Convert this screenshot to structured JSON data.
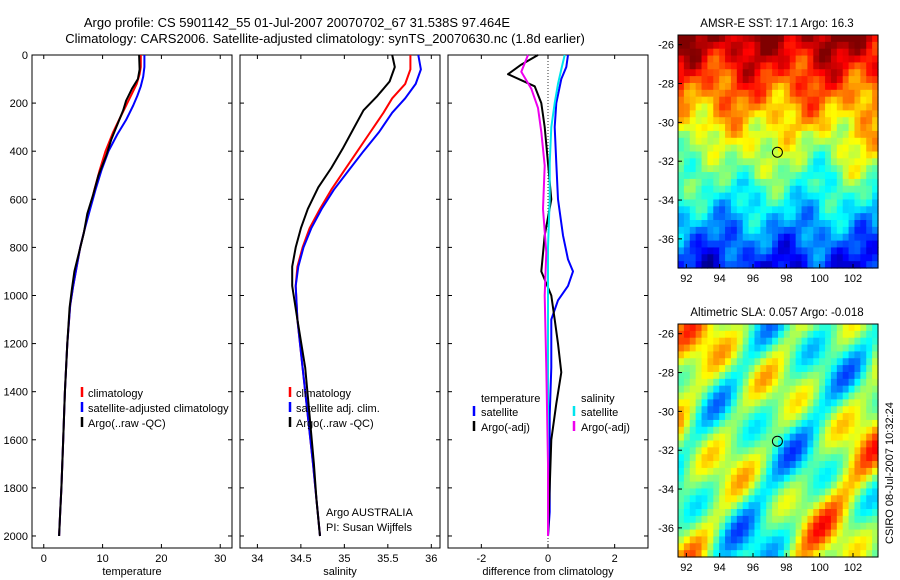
{
  "header": {
    "line1": "Argo profile: CS 5901142_55 01-Jul-2007 20070702_67 31.538S 97.464E",
    "line2": "Climatology: CARS2006. Satellite-adjusted climatology: synTS_20070630.nc (1.8d earlier)"
  },
  "credit": {
    "text": "CSIRO 08-Jul-2007 10:32:24"
  },
  "colors": {
    "climatology": "#ff0000",
    "satellite": "#0000ff",
    "argo": "#000000",
    "salinity_satellite": "#00e5ee",
    "salinity_argo": "#ee00ee"
  },
  "chart_data": [
    {
      "id": "temperature",
      "type": "line",
      "xlabel": "temperature",
      "ylabel": "",
      "xlim": [
        -2,
        32
      ],
      "ylim": [
        2050,
        0
      ],
      "xticks": [
        0,
        10,
        20,
        30
      ],
      "yticks": [
        0,
        200,
        400,
        600,
        800,
        1000,
        1200,
        1400,
        1600,
        1800,
        2000
      ],
      "legend": {
        "placement": "lower-right",
        "entries": [
          "climatology",
          "satellite-adjusted climatology",
          "Argo(..raw -QC)"
        ]
      },
      "series": [
        {
          "name": "climatology",
          "color": "#ff0000",
          "x": [
            16.5,
            16.5,
            16.3,
            15.8,
            15.0,
            14.2,
            13.0,
            11.8,
            10.5,
            9.5,
            8.6,
            7.8,
            7.0,
            6.2,
            5.6,
            5.0,
            4.5,
            4.0,
            3.6,
            3.3,
            3.0,
            2.8,
            2.6
          ],
          "y": [
            0,
            50,
            80,
            120,
            160,
            200,
            260,
            320,
            400,
            480,
            560,
            640,
            720,
            800,
            880,
            960,
            1040,
            1200,
            1400,
            1600,
            1800,
            1900,
            2000
          ]
        },
        {
          "name": "satellite-adjusted climatology",
          "color": "#0000ff",
          "x": [
            17.1,
            17.1,
            16.9,
            16.5,
            15.9,
            15.2,
            14.0,
            12.5,
            11.0,
            9.8,
            8.8,
            7.9,
            7.0,
            6.2,
            5.6,
            5.0,
            4.5,
            4.0,
            3.6,
            3.3,
            3.0,
            2.8,
            2.6
          ],
          "y": [
            0,
            50,
            90,
            130,
            170,
            210,
            270,
            330,
            400,
            480,
            560,
            640,
            720,
            800,
            880,
            960,
            1040,
            1200,
            1400,
            1600,
            1800,
            1900,
            2000
          ]
        },
        {
          "name": "Argo(..raw -QC)",
          "color": "#000000",
          "x": [
            16.2,
            16.3,
            16.0,
            15.0,
            14.0,
            13.5,
            12.5,
            11.5,
            10.6,
            9.3,
            8.4,
            7.4,
            6.8,
            6.0,
            5.2,
            4.8,
            4.4,
            4.0,
            3.6,
            3.3,
            3.0,
            2.8,
            2.6
          ],
          "y": [
            0,
            60,
            100,
            140,
            190,
            230,
            290,
            350,
            420,
            500,
            580,
            660,
            740,
            820,
            900,
            970,
            1050,
            1200,
            1400,
            1600,
            1800,
            1900,
            2000
          ]
        }
      ]
    },
    {
      "id": "salinity",
      "type": "line",
      "xlabel": "salinity",
      "ylabel": "",
      "xlim": [
        33.8,
        36.1
      ],
      "ylim": [
        2050,
        0
      ],
      "xticks": [
        34,
        34.5,
        35,
        35.5,
        36
      ],
      "yticks": [
        0,
        200,
        400,
        600,
        800,
        1000,
        1200,
        1400,
        1600,
        1800,
        2000
      ],
      "legend": {
        "placement": "lower-right",
        "entries": [
          "climatology",
          "satellite adj. clim.",
          "Argo(..raw -QC)"
        ]
      },
      "annotation": [
        "Argo AUSTRALIA",
        "PI: Susan Wijffels"
      ],
      "series": [
        {
          "name": "climatology",
          "color": "#ff0000",
          "x": [
            35.76,
            35.76,
            35.7,
            35.55,
            35.45,
            35.3,
            35.15,
            35.0,
            34.85,
            34.72,
            34.6,
            34.52,
            34.46,
            34.44,
            34.46,
            34.52,
            34.58,
            34.64,
            34.68,
            34.72
          ],
          "y": [
            0,
            60,
            120,
            180,
            240,
            320,
            400,
            480,
            560,
            640,
            720,
            800,
            880,
            960,
            1100,
            1300,
            1500,
            1700,
            1850,
            2000
          ]
        },
        {
          "name": "satellite adj. clim.",
          "color": "#0000ff",
          "x": [
            35.85,
            35.88,
            35.82,
            35.7,
            35.55,
            35.4,
            35.22,
            35.05,
            34.88,
            34.74,
            34.62,
            34.53,
            34.47,
            34.44,
            34.46,
            34.52,
            34.58,
            34.64,
            34.68,
            34.72
          ],
          "y": [
            0,
            60,
            120,
            180,
            240,
            320,
            400,
            480,
            560,
            640,
            720,
            800,
            880,
            960,
            1100,
            1300,
            1500,
            1700,
            1850,
            2000
          ]
        },
        {
          "name": "Argo(..raw -QC)",
          "color": "#000000",
          "x": [
            35.55,
            35.58,
            35.52,
            35.38,
            35.22,
            35.1,
            34.98,
            34.85,
            34.7,
            34.58,
            34.5,
            34.44,
            34.4,
            34.4,
            34.46,
            34.55,
            34.6,
            34.65,
            34.68,
            34.72
          ],
          "y": [
            0,
            50,
            110,
            170,
            230,
            310,
            390,
            470,
            550,
            640,
            720,
            800,
            880,
            960,
            1100,
            1300,
            1500,
            1700,
            1850,
            2000
          ]
        }
      ]
    },
    {
      "id": "difference",
      "type": "line",
      "xlabel": "difference from climatology",
      "ylabel": "",
      "xlim": [
        -3,
        3
      ],
      "ylim": [
        2050,
        0
      ],
      "xticks": [
        -2,
        0,
        2
      ],
      "yticks": [
        0,
        200,
        400,
        600,
        800,
        1000,
        1200,
        1400,
        1600,
        1800,
        2000
      ],
      "legend": {
        "placement": "lower-center",
        "group_titles": [
          "temperature",
          "salinity"
        ],
        "entries": [
          "satellite",
          "Argo(-adj)",
          "satellite",
          "Argo(-adj)"
        ]
      },
      "series": [
        {
          "name": "satellite",
          "group": "temperature",
          "color": "#0000ff",
          "x": [
            0.6,
            0.55,
            0.4,
            0.25,
            0.2,
            0.25,
            0.3,
            0.45,
            0.6,
            0.75,
            0.6,
            0.3,
            0.1,
            0.1,
            0.05,
            0.05,
            0.05,
            0.0
          ],
          "y": [
            0,
            50,
            100,
            200,
            300,
            450,
            600,
            750,
            850,
            900,
            960,
            1020,
            1100,
            1300,
            1500,
            1700,
            1900,
            2000
          ]
        },
        {
          "name": "Argo(-adj)",
          "group": "temperature",
          "color": "#000000",
          "x": [
            -0.3,
            -0.8,
            -1.2,
            -0.4,
            -0.2,
            -0.1,
            0.0,
            0.1,
            -0.1,
            -0.2,
            0.1,
            0.2,
            0.3,
            0.4,
            0.25,
            0.1,
            0.05,
            0.0
          ],
          "y": [
            0,
            40,
            80,
            130,
            200,
            300,
            450,
            600,
            750,
            900,
            1000,
            1100,
            1200,
            1320,
            1450,
            1600,
            1800,
            2000
          ]
        },
        {
          "name": "satellite",
          "group": "salinity",
          "color": "#00e5ee",
          "x": [
            0.5,
            0.4,
            0.3,
            0.2,
            0.1,
            0.05,
            0.05,
            0.0,
            0.0,
            0.0,
            0.0,
            0.0
          ],
          "y": [
            0,
            60,
            120,
            200,
            300,
            450,
            600,
            800,
            1000,
            1400,
            1800,
            2000
          ]
        },
        {
          "name": "Argo(-adj)",
          "group": "salinity",
          "color": "#ee00ee",
          "x": [
            -0.6,
            -0.8,
            -0.5,
            -0.3,
            -0.2,
            -0.1,
            -0.15,
            -0.05,
            -0.1,
            -0.05,
            0.0,
            0.0
          ],
          "y": [
            0,
            70,
            140,
            220,
            320,
            460,
            640,
            820,
            1000,
            1300,
            1700,
            2000
          ]
        }
      ]
    },
    {
      "id": "sst_map",
      "type": "heatmap",
      "title": "AMSR-E SST: 17.1 Argo: 16.3",
      "xlim": [
        91.5,
        103.5
      ],
      "ylim": [
        -37.5,
        -25.5
      ],
      "xticks": [
        92,
        94,
        96,
        98,
        100,
        102
      ],
      "yticks": [
        -26,
        -28,
        -30,
        -32,
        -34,
        -36
      ],
      "marker": {
        "lon": 97.464,
        "lat": -31.538
      }
    },
    {
      "id": "sla_map",
      "type": "heatmap",
      "title": "Altimetric SLA: 0.057 Argo: -0.018",
      "xlim": [
        91.5,
        103.5
      ],
      "ylim": [
        -37.5,
        -25.5
      ],
      "xticks": [
        92,
        94,
        96,
        98,
        100,
        102
      ],
      "yticks": [
        -26,
        -28,
        -30,
        -32,
        -34,
        -36
      ],
      "marker": {
        "lon": 97.464,
        "lat": -31.538
      }
    }
  ]
}
